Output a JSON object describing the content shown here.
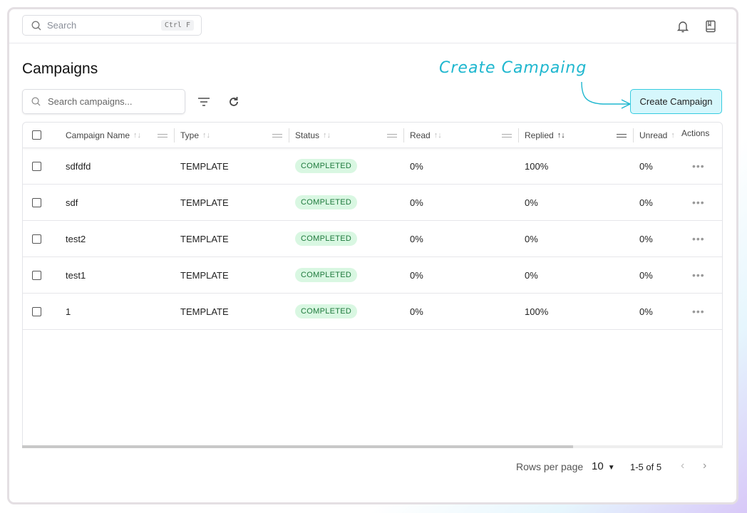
{
  "topbar": {
    "search_placeholder": "Search",
    "shortcut": "Ctrl F"
  },
  "page_title": "Campaigns",
  "toolbar": {
    "search_placeholder": "Search campaigns...",
    "create_label": "Create Campaign"
  },
  "annotation": "Create Campaing",
  "columns": [
    "Campaign Name",
    "Type",
    "Status",
    "Read",
    "Replied",
    "Unread",
    "Actions"
  ],
  "rows": [
    {
      "name": "sdfdfd",
      "type": "TEMPLATE",
      "status": "COMPLETED",
      "read": "0%",
      "replied": "100%",
      "unread": "0%"
    },
    {
      "name": "sdf",
      "type": "TEMPLATE",
      "status": "COMPLETED",
      "read": "0%",
      "replied": "0%",
      "unread": "0%"
    },
    {
      "name": "test2",
      "type": "TEMPLATE",
      "status": "COMPLETED",
      "read": "0%",
      "replied": "0%",
      "unread": "0%"
    },
    {
      "name": "test1",
      "type": "TEMPLATE",
      "status": "COMPLETED",
      "read": "0%",
      "replied": "0%",
      "unread": "0%"
    },
    {
      "name": "1",
      "type": "TEMPLATE",
      "status": "COMPLETED",
      "read": "0%",
      "replied": "100%",
      "unread": "0%"
    }
  ],
  "pagination": {
    "rows_per_page_label": "Rows per page",
    "rows_per_page": "10",
    "range": "1-5 of 5"
  }
}
